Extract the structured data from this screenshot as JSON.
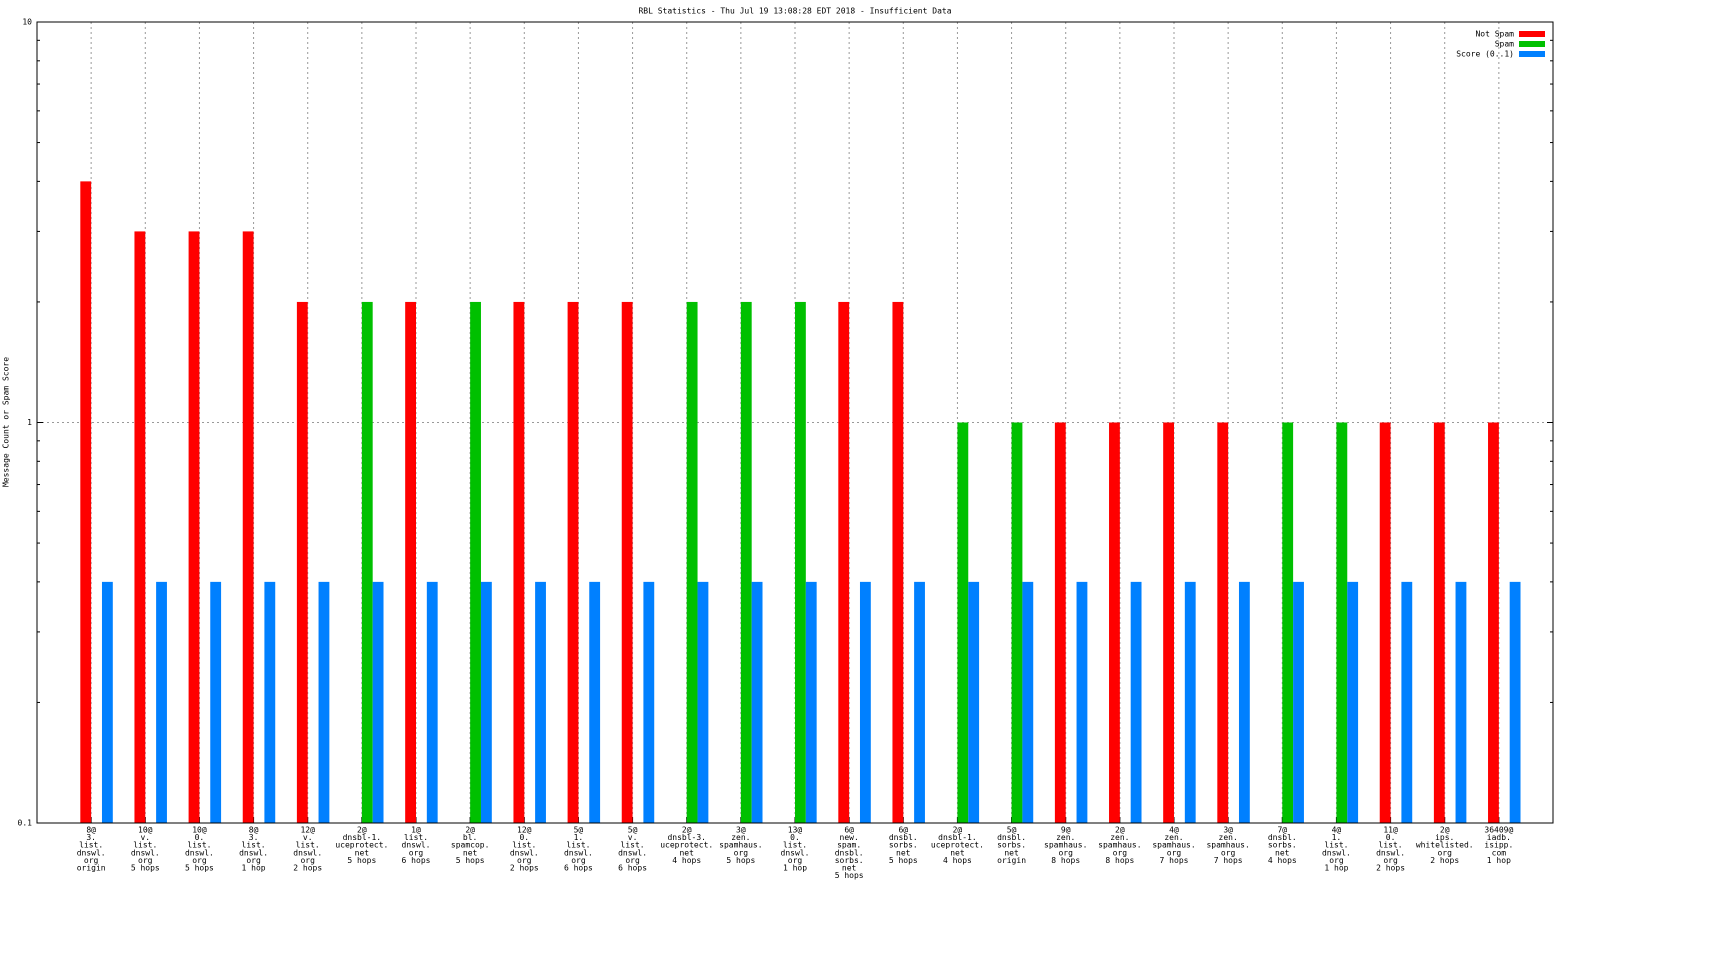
{
  "chart_data": {
    "type": "bar",
    "title": "RBL Statistics - Thu Jul 19 13:08:28 EDT 2018 - Insufficient Data",
    "y_label": "Message Count or Spam Score",
    "log_y": true,
    "grid": true,
    "legend": "top-right",
    "ylim": [
      0.1,
      10
    ],
    "yticks": [
      0.1,
      1,
      10
    ],
    "categories": [
      [
        "8@",
        "3.",
        "list.",
        "dnswl.",
        "org",
        "origin"
      ],
      [
        "10@",
        "v.",
        "list.",
        "dnswl.",
        "org",
        "5 hops"
      ],
      [
        "10@",
        "0.",
        "list.",
        "dnswl.",
        "org",
        "5 hops"
      ],
      [
        "8@",
        "3.",
        "list.",
        "dnswl.",
        "org",
        "1 hop"
      ],
      [
        "12@",
        "v.",
        "list.",
        "dnswl.",
        "org",
        "2 hops"
      ],
      [
        "2@",
        "dnsbl-1.",
        "uceprotect.",
        "net",
        "5 hops"
      ],
      [
        "1@",
        "list.",
        "dnswl.",
        "org",
        "6 hops"
      ],
      [
        "2@",
        "bl.",
        "spamcop.",
        "net",
        "5 hops"
      ],
      [
        "12@",
        "0.",
        "list.",
        "dnswl.",
        "org",
        "2 hops"
      ],
      [
        "5@",
        "1.",
        "list.",
        "dnswl.",
        "org",
        "6 hops"
      ],
      [
        "5@",
        "v.",
        "list.",
        "dnswl.",
        "org",
        "6 hops"
      ],
      [
        "2@",
        "dnsbl-3.",
        "uceprotect.",
        "net",
        "4 hops"
      ],
      [
        "3@",
        "zen.",
        "spamhaus.",
        "org",
        "5 hops"
      ],
      [
        "13@",
        "0.",
        "list.",
        "dnswl.",
        "org",
        "1 hop"
      ],
      [
        "6@",
        "new.",
        "spam.",
        "dnsbl.",
        "sorbs.",
        "net",
        "5 hops"
      ],
      [
        "6@",
        "dnsbl.",
        "sorbs.",
        "net",
        "5 hops"
      ],
      [
        "2@",
        "dnsbl-1.",
        "uceprotect.",
        "net",
        "4 hops"
      ],
      [
        "5@",
        "dnsbl.",
        "sorbs.",
        "net",
        "origin"
      ],
      [
        "9@",
        "zen.",
        "spamhaus.",
        "org",
        "8 hops"
      ],
      [
        "2@",
        "zen.",
        "spamhaus.",
        "org",
        "8 hops"
      ],
      [
        "4@",
        "zen.",
        "spamhaus.",
        "org",
        "7 hops"
      ],
      [
        "3@",
        "zen.",
        "spamhaus.",
        "org",
        "7 hops"
      ],
      [
        "7@",
        "dnsbl.",
        "sorbs.",
        "net",
        "4 hops"
      ],
      [
        "4@",
        "1.",
        "list.",
        "dnswl.",
        "org",
        "1 hop"
      ],
      [
        "11@",
        "0.",
        "list.",
        "dnswl.",
        "org",
        "2 hops"
      ],
      [
        "2@",
        "ips.",
        "whitelisted.",
        "org",
        "2 hops"
      ],
      [
        "36409@",
        "iadb.",
        "isipp.",
        "com",
        "1 hop"
      ]
    ],
    "series": [
      {
        "name": "Not Spam",
        "color": "#ff0000",
        "values": [
          4,
          3,
          3,
          3,
          2,
          null,
          2,
          null,
          2,
          2,
          2,
          null,
          null,
          null,
          2,
          2,
          null,
          null,
          1,
          1,
          1,
          1,
          null,
          null,
          1,
          1,
          1
        ]
      },
      {
        "name": "Spam",
        "color": "#00c000",
        "values": [
          null,
          null,
          null,
          null,
          null,
          2,
          null,
          2,
          null,
          null,
          null,
          2,
          2,
          2,
          null,
          null,
          1,
          1,
          null,
          null,
          null,
          null,
          1,
          1,
          null,
          null,
          null
        ]
      },
      {
        "name": "Score (0..1)",
        "color": "#0080ff",
        "values": [
          0.4,
          0.4,
          0.4,
          0.4,
          0.4,
          0.4,
          0.4,
          0.4,
          0.4,
          0.4,
          0.4,
          0.4,
          0.4,
          0.4,
          0.4,
          0.4,
          0.4,
          0.4,
          0.4,
          0.4,
          0.4,
          0.4,
          0.4,
          0.4,
          0.4,
          0.4,
          0.4
        ]
      }
    ]
  }
}
